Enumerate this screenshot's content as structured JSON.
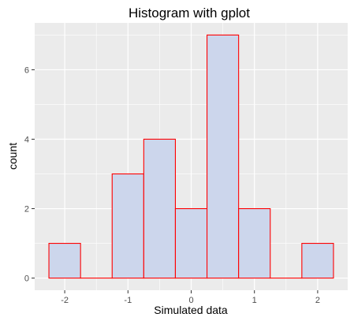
{
  "chart_data": {
    "type": "bar",
    "title": "Histogram with gplot",
    "xlabel": "Simulated data",
    "ylabel": "count",
    "bins": [
      {
        "xmin": -2.25,
        "xmax": -1.75,
        "count": 1
      },
      {
        "xmin": -1.75,
        "xmax": -1.25,
        "count": 0
      },
      {
        "xmin": -1.25,
        "xmax": -0.75,
        "count": 3
      },
      {
        "xmin": -0.75,
        "xmax": -0.25,
        "count": 4
      },
      {
        "xmin": -0.25,
        "xmax": 0.25,
        "count": 2
      },
      {
        "xmin": 0.25,
        "xmax": 0.75,
        "count": 7
      },
      {
        "xmin": 0.75,
        "xmax": 1.25,
        "count": 2
      },
      {
        "xmin": 1.25,
        "xmax": 1.75,
        "count": 0
      },
      {
        "xmin": 1.75,
        "xmax": 2.25,
        "count": 1
      }
    ],
    "xticks": [
      -2,
      -1,
      0,
      1,
      2
    ],
    "xtick_labels": [
      "-2",
      "-1",
      "0",
      "1",
      "2"
    ],
    "yticks": [
      0,
      2,
      4,
      6
    ],
    "ytick_labels": [
      "0",
      "2",
      "4",
      "6"
    ],
    "xlim": [
      -2.475,
      2.475
    ],
    "ylim": [
      -0.35,
      7.35
    ],
    "grid": true,
    "colors": {
      "panel_background": "#ebebeb",
      "grid_line": "#ffffff",
      "bar_fill": "#ccd6ec",
      "bar_stroke": "#ff0000",
      "axis_text": "#4d4d4d",
      "title_text": "#000000"
    }
  }
}
